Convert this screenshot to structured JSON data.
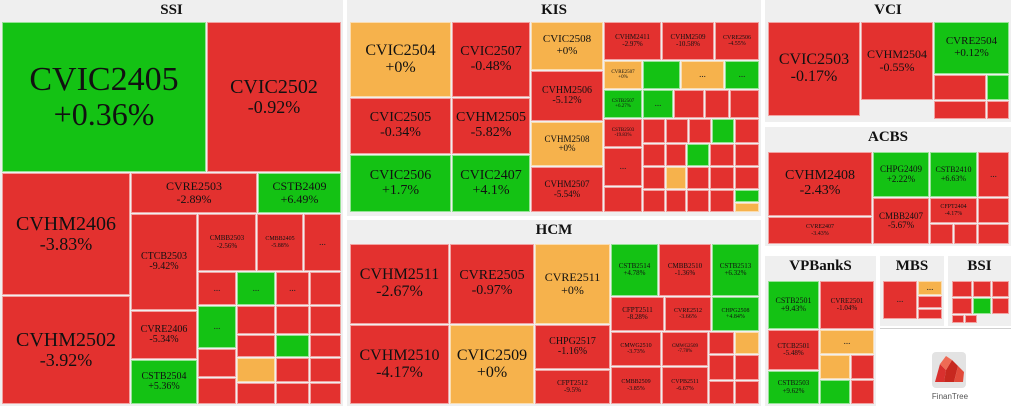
{
  "colors": {
    "down": "#e3312f",
    "up": "#14c214",
    "flat": "#f6b24c",
    "background": "#efefef"
  },
  "more_label": "...",
  "logo_text": "FinanTree",
  "chart_data": {
    "type": "treemap",
    "groups": [
      {
        "name": "SSI",
        "items": [
          {
            "name": "CVIC2405",
            "change": "+0.36%"
          },
          {
            "name": "CVIC2502",
            "change": "-0.92%"
          },
          {
            "name": "CVHM2406",
            "change": "-3.83%"
          },
          {
            "name": "CVHM2502",
            "change": "-3.92%"
          },
          {
            "name": "CVRE2503",
            "change": "-2.89%"
          },
          {
            "name": "CSTB2409",
            "change": "+6.49%"
          },
          {
            "name": "CTCB2503",
            "change": "-9.42%"
          },
          {
            "name": "CMBB2503",
            "change": "-2.56%"
          },
          {
            "name": "CMBB2405",
            "change": "-5.88%"
          },
          {
            "name": "CVRE2406",
            "change": "-5.34%"
          },
          {
            "name": "CSTB2504",
            "change": "+5.36%"
          }
        ]
      },
      {
        "name": "KIS",
        "items": [
          {
            "name": "CVIC2504",
            "change": "+0%"
          },
          {
            "name": "CVIC2507",
            "change": "-0.48%"
          },
          {
            "name": "CVIC2508",
            "change": "+0%"
          },
          {
            "name": "CVHM2411",
            "change": "-2.97%"
          },
          {
            "name": "CVHM2509",
            "change": "-10.58%"
          },
          {
            "name": "CVRE2506",
            "change": "-4.55%"
          },
          {
            "name": "CVIC2505",
            "change": "-0.34%"
          },
          {
            "name": "CVHM2505",
            "change": "-5.82%"
          },
          {
            "name": "CVHM2506",
            "change": "-5.12%"
          },
          {
            "name": "CVRE2507",
            "change": "+0%"
          },
          {
            "name": "CSTB2507",
            "change": "+6.27%"
          },
          {
            "name": "CVHM2508",
            "change": "+0%"
          },
          {
            "name": "CSTB2503",
            "change": "-19.83%"
          },
          {
            "name": "CVIC2506",
            "change": "+1.7%"
          },
          {
            "name": "CVIC2407",
            "change": "+4.1%"
          },
          {
            "name": "CVHM2507",
            "change": "-5.54%"
          }
        ]
      },
      {
        "name": "HCM",
        "items": [
          {
            "name": "CVHM2511",
            "change": "-2.67%"
          },
          {
            "name": "CVRE2505",
            "change": "-0.97%"
          },
          {
            "name": "CVRE2511",
            "change": "+0%"
          },
          {
            "name": "CSTB2514",
            "change": "+4.78%"
          },
          {
            "name": "CMBB2510",
            "change": "-1.36%"
          },
          {
            "name": "CSTB2513",
            "change": "+6.32%"
          },
          {
            "name": "CFPT2511",
            "change": "-8.28%"
          },
          {
            "name": "CVRE2512",
            "change": "-3.66%"
          },
          {
            "name": "CHPG2508",
            "change": "+4.84%"
          },
          {
            "name": "CHPG2517",
            "change": "-1.16%"
          },
          {
            "name": "CMWG2510",
            "change": "-3.73%"
          },
          {
            "name": "CMWG2509",
            "change": "-7.78%"
          },
          {
            "name": "CVHM2510",
            "change": "-4.17%"
          },
          {
            "name": "CVIC2509",
            "change": "+0%"
          },
          {
            "name": "CFPT2512",
            "change": "-9.5%"
          },
          {
            "name": "CMBB2509",
            "change": "-3.85%"
          },
          {
            "name": "CVPB2511",
            "change": "-6.67%"
          }
        ]
      },
      {
        "name": "VCI",
        "items": [
          {
            "name": "CVIC2503",
            "change": "-0.17%"
          },
          {
            "name": "CVHM2504",
            "change": "-0.55%"
          },
          {
            "name": "CVRE2504",
            "change": "+0.12%"
          }
        ]
      },
      {
        "name": "ACBS",
        "items": [
          {
            "name": "CVHM2408",
            "change": "-2.43%"
          },
          {
            "name": "CHPG2409",
            "change": "+2.22%"
          },
          {
            "name": "CSTB2410",
            "change": "+6.63%"
          },
          {
            "name": "CVRE2407",
            "change": "-3.43%"
          },
          {
            "name": "CMBB2407",
            "change": "-5.67%"
          },
          {
            "name": "CFPT2404",
            "change": "-4.17%"
          }
        ]
      },
      {
        "name": "VPBankS",
        "items": [
          {
            "name": "CSTB2501",
            "change": "+9.43%"
          },
          {
            "name": "CVRE2501",
            "change": "-1.04%"
          },
          {
            "name": "CTCB2501",
            "change": "-5.48%"
          },
          {
            "name": "CSTB2503",
            "change": "+9.62%"
          }
        ]
      },
      {
        "name": "MBS",
        "items": []
      },
      {
        "name": "BSI",
        "items": []
      }
    ]
  }
}
